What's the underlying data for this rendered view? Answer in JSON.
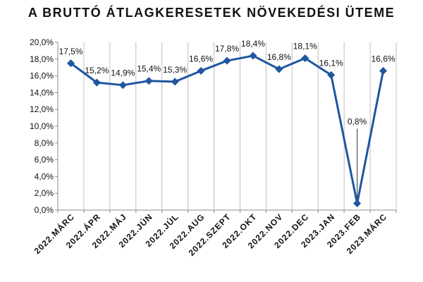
{
  "chart_data": {
    "type": "line",
    "title": "A BRUTTÓ ÁTLAGKERESETEK NÖVEKEDÉSI ÜTEME",
    "categories": [
      "2022.MÁRC",
      "2022.ÁPR",
      "2022.MÁJ",
      "2022.JÚN",
      "2022.JÚL",
      "2022.AUG",
      "2022.SZEPT",
      "2022.OKT",
      "2022.NOV",
      "2022.DEC",
      "2023.JAN",
      "2023.FEB",
      "2023.MÁRC"
    ],
    "values": [
      17.5,
      15.2,
      14.9,
      15.4,
      15.3,
      16.6,
      17.8,
      18.4,
      16.8,
      18.1,
      16.1,
      0.8,
      16.6
    ],
    "data_labels": [
      "17,5%",
      "15,2%",
      "14,9%",
      "15,4%",
      "15,3%",
      "16,6%",
      "17,8%",
      "18,4%",
      "16,8%",
      "18,1%",
      "16,1%",
      "0,8%",
      "16,6%"
    ],
    "yticks": [
      0,
      2,
      4,
      6,
      8,
      10,
      12,
      14,
      16,
      18,
      20
    ],
    "ytick_labels": [
      "0,0%",
      "2,0%",
      "4,0%",
      "6,0%",
      "8,0%",
      "10,0%",
      "12,0%",
      "14,0%",
      "16,0%",
      "18,0%",
      "20,0%"
    ],
    "ylim": [
      0,
      20
    ],
    "xlabel": "",
    "ylabel": "",
    "grid": "vertical",
    "legend": "none",
    "colors": {
      "line": "#1f56a0",
      "grid": "#bfbfbf",
      "axis": "#8c8c8c",
      "text": "#111111"
    }
  }
}
